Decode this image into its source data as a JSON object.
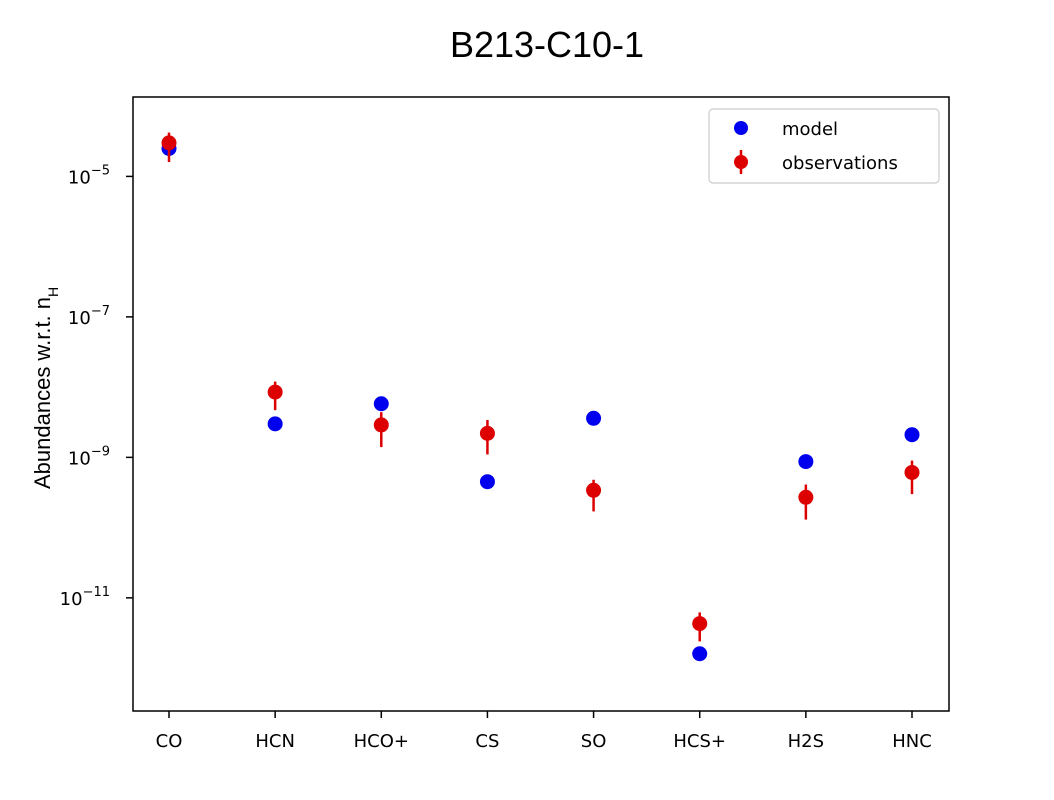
{
  "chart_data": {
    "type": "scatter",
    "title": "B213-C10-1",
    "ylabel_main": "Abundances w.r.t. n",
    "ylabel_sub": "H",
    "y_scale": "log",
    "ylim": [
      2.45e-13,
      0.000135
    ],
    "y_ticks": [
      {
        "value": 1e-05,
        "base": "10",
        "exp": "−5"
      },
      {
        "value": 1e-07,
        "base": "10",
        "exp": "−7"
      },
      {
        "value": 1e-09,
        "base": "10",
        "exp": "−9"
      },
      {
        "value": 1e-11,
        "base": "10",
        "exp": "−11"
      }
    ],
    "categories": [
      "CO",
      "HCN",
      "HCO+",
      "CS",
      "SO",
      "HCS+",
      "H2S",
      "HNC"
    ],
    "series": [
      {
        "name": "model",
        "color": "#0000ee",
        "values": [
          2.5e-05,
          3e-09,
          5.8e-09,
          4.5e-10,
          3.6e-09,
          1.6e-12,
          8.7e-10,
          2.1e-09
        ]
      },
      {
        "name": "observations",
        "color": "#dd0000",
        "values": [
          3e-05,
          8.5e-09,
          2.9e-09,
          2.2e-09,
          3.4e-10,
          4.3e-12,
          2.7e-10,
          6.1e-10
        ],
        "err_low": [
          1.6e-05,
          4.7e-09,
          1.4e-09,
          1.1e-09,
          1.7e-10,
          2.4e-12,
          1.3e-10,
          3e-10
        ],
        "err_high": [
          4.2e-05,
          1.2e-08,
          4.4e-09,
          3.4e-09,
          4.8e-10,
          6.2e-12,
          4.1e-10,
          9e-10
        ]
      }
    ],
    "legend": {
      "position": "top-right"
    },
    "grid": false
  }
}
